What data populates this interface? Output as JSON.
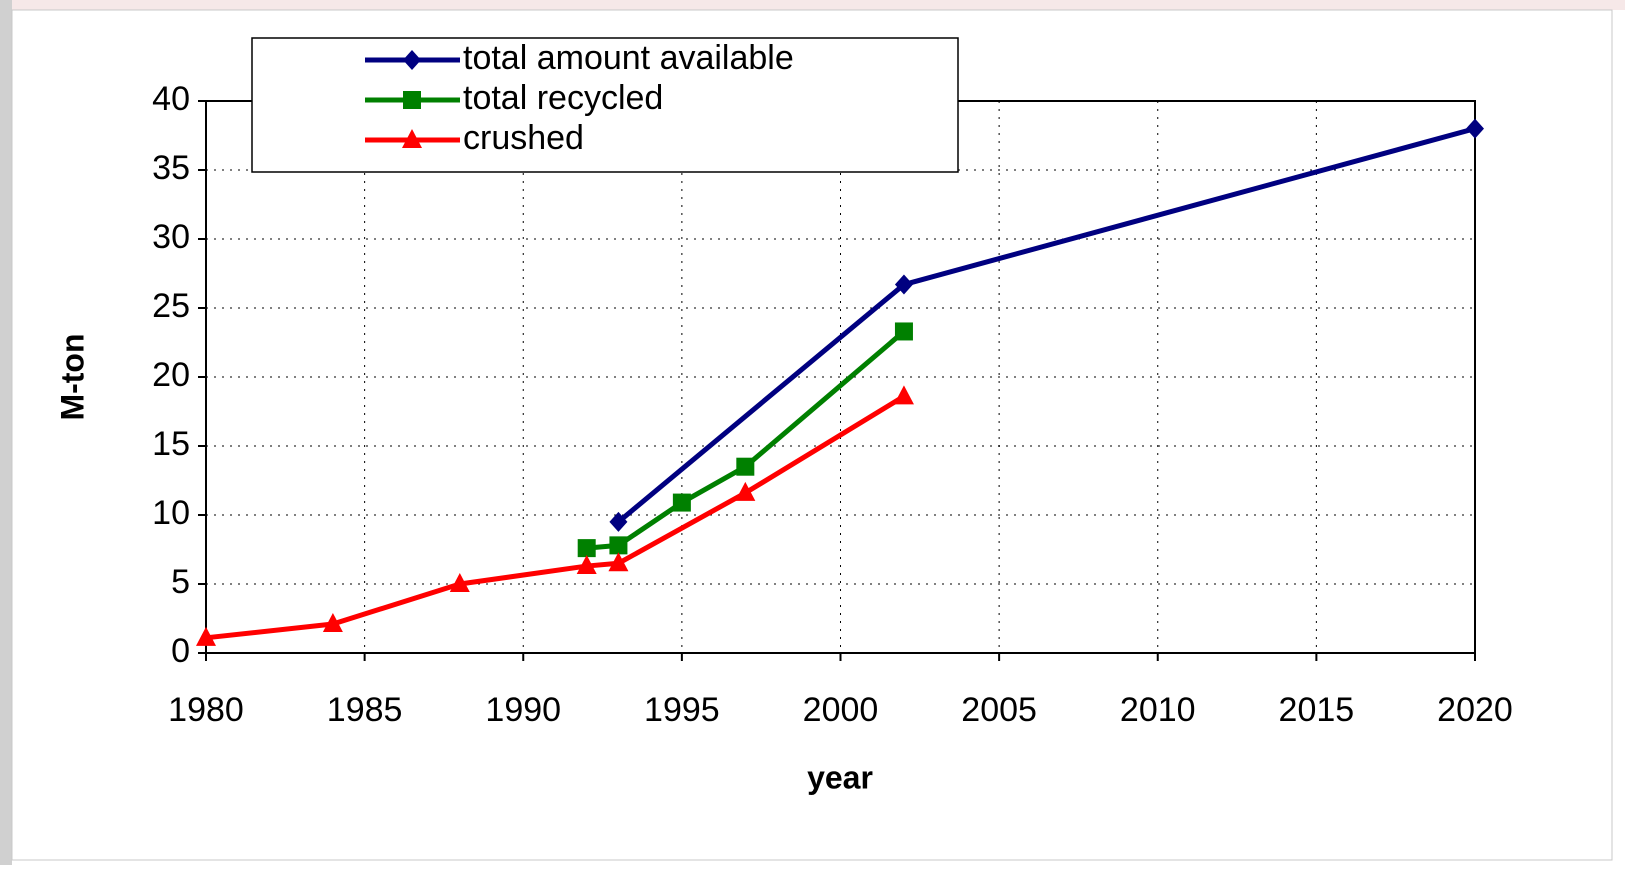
{
  "chart_data": {
    "type": "line",
    "x_label": "year",
    "y_label": "M-ton",
    "xlim": [
      1980,
      2020
    ],
    "xticks": [
      1980,
      1985,
      1990,
      1995,
      2000,
      2005,
      2010,
      2015,
      2020
    ],
    "ylim": [
      0,
      40
    ],
    "yticks": [
      0,
      5,
      10,
      15,
      20,
      25,
      30,
      35,
      40
    ],
    "grid": true,
    "legend": "top-left",
    "series": [
      {
        "name": "total amount available",
        "color": "#000080",
        "marker": "diamond",
        "x": [
          1993,
          2002,
          2020
        ],
        "values": [
          9.5,
          26.7,
          38
        ]
      },
      {
        "name": "total recycled",
        "color": "#008000",
        "marker": "square",
        "x": [
          1992,
          1993,
          1995,
          1997,
          2002
        ],
        "values": [
          7.6,
          7.8,
          10.9,
          13.5,
          23.3
        ]
      },
      {
        "name": "crushed",
        "color": "#ff0000",
        "marker": "triangle",
        "x": [
          1980,
          1984,
          1988,
          1992,
          1993,
          1997,
          2002
        ],
        "values": [
          1.1,
          2.1,
          5.0,
          6.3,
          6.5,
          11.6,
          18.6
        ]
      }
    ]
  }
}
